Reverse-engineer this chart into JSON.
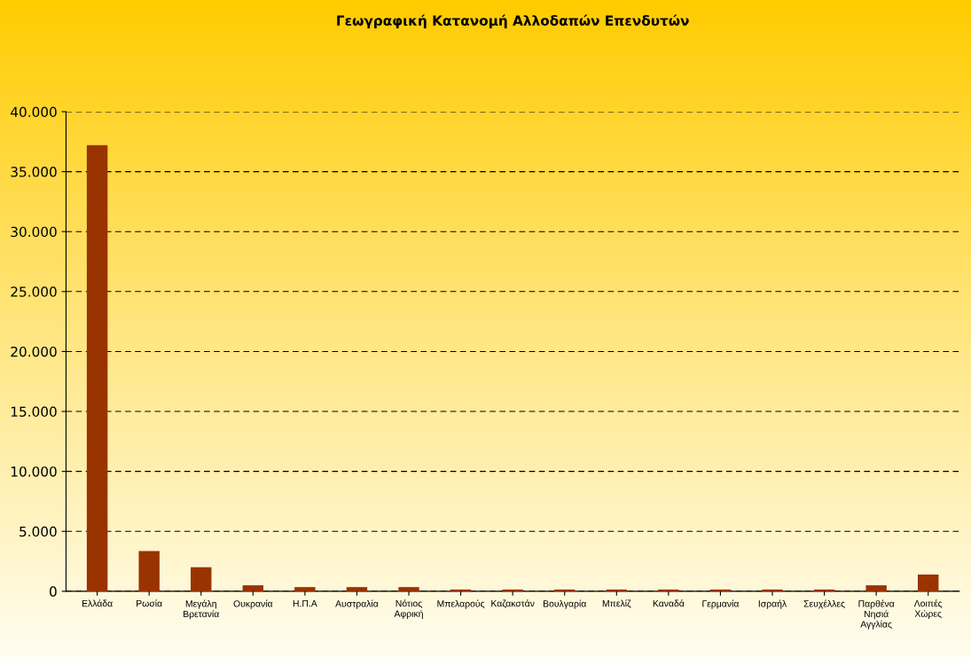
{
  "chart_data": {
    "type": "bar",
    "title": "Γεωγραφική Κατανομή Αλλοδαπών Επενδυτών",
    "categories": [
      "Ελλάδα",
      "Ρωσία",
      "Μεγάλη Βρετανία",
      "Ουκρανία",
      "Η.Π.Α",
      "Αυστραλία",
      "Νότιος Αφρική",
      "Μπελαρούς",
      "Καζακστάν",
      "Βουλγαρία",
      "Μπελίζ",
      "Καναδά",
      "Γερμανία",
      "Ισραήλ",
      "Σευχέλλες",
      "Παρθένα Νησιά Αγγλίας",
      "Λοιπές Χώρες"
    ],
    "values": [
      37200,
      3350,
      2000,
      500,
      350,
      350,
      350,
      150,
      150,
      150,
      150,
      150,
      150,
      150,
      150,
      500,
      1400
    ],
    "color": "#993300",
    "ylim": [
      0,
      40000
    ],
    "yticks": [
      {
        "value": 0,
        "label": "0"
      },
      {
        "value": 5000,
        "label": "5.000"
      },
      {
        "value": 10000,
        "label": "10.000"
      },
      {
        "value": 15000,
        "label": "15.000"
      },
      {
        "value": 20000,
        "label": "20.000"
      },
      {
        "value": 25000,
        "label": "25.000"
      },
      {
        "value": 30000,
        "label": "30.000"
      },
      {
        "value": 35000,
        "label": "35.000"
      },
      {
        "value": 40000,
        "label": "40.000"
      }
    ],
    "grid": "y",
    "line_style": "dashed"
  }
}
